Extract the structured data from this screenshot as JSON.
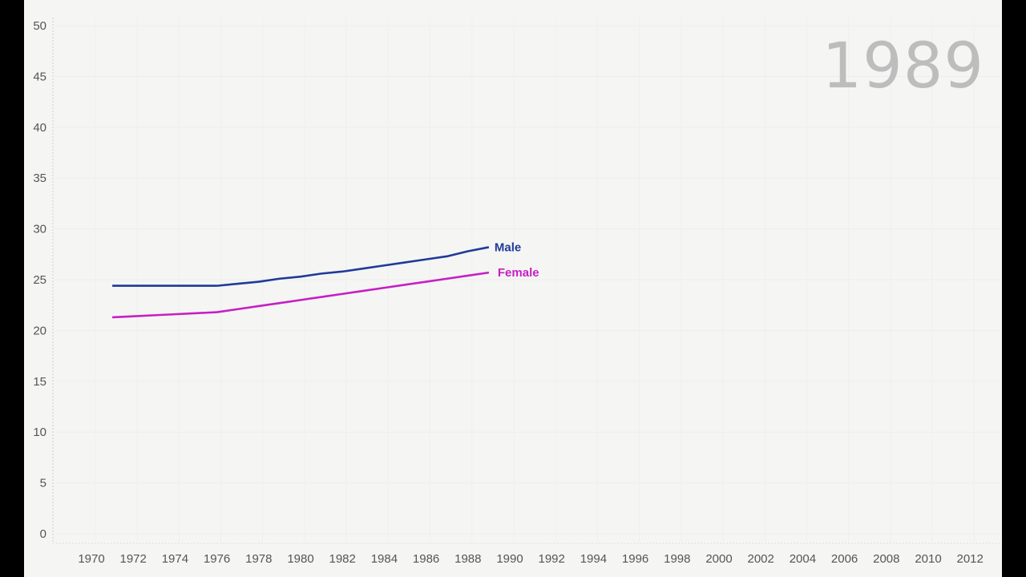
{
  "year_display": "1989",
  "colors": {
    "male": "#1f3a99",
    "female": "#c61fc4",
    "background": "#f5f5f4",
    "axis_text": "#555555",
    "year_text": "#bdbdbd"
  },
  "chart_data": {
    "type": "line",
    "title": "",
    "xlabel": "",
    "ylabel": "",
    "xlim": [
      1969,
      2013
    ],
    "ylim": [
      0,
      50
    ],
    "grid": true,
    "legend_position": "inline-end-labels",
    "y_ticks": [
      0,
      5,
      10,
      15,
      20,
      25,
      30,
      35,
      40,
      45,
      50
    ],
    "x_ticks": [
      1970,
      1972,
      1974,
      1976,
      1978,
      1980,
      1982,
      1984,
      1986,
      1988,
      1990,
      1992,
      1994,
      1996,
      1998,
      2000,
      2002,
      2004,
      2006,
      2008,
      2010,
      2012
    ],
    "x": [
      1971,
      1972,
      1973,
      1974,
      1975,
      1976,
      1977,
      1978,
      1979,
      1980,
      1981,
      1982,
      1983,
      1984,
      1985,
      1986,
      1987,
      1988,
      1989
    ],
    "series": [
      {
        "name": "Male",
        "color": "#1f3a99",
        "values": [
          24.4,
          24.4,
          24.4,
          24.4,
          24.4,
          24.4,
          24.6,
          24.8,
          25.1,
          25.3,
          25.6,
          25.8,
          26.1,
          26.4,
          26.7,
          27.0,
          27.3,
          27.8,
          28.2
        ]
      },
      {
        "name": "Female",
        "color": "#c61fc4",
        "values": [
          21.3,
          21.4,
          21.5,
          21.6,
          21.7,
          21.8,
          22.1,
          22.4,
          22.7,
          23.0,
          23.3,
          23.6,
          23.9,
          24.2,
          24.5,
          24.8,
          25.1,
          25.4,
          25.7
        ]
      }
    ],
    "annotations": [
      "1989"
    ]
  }
}
